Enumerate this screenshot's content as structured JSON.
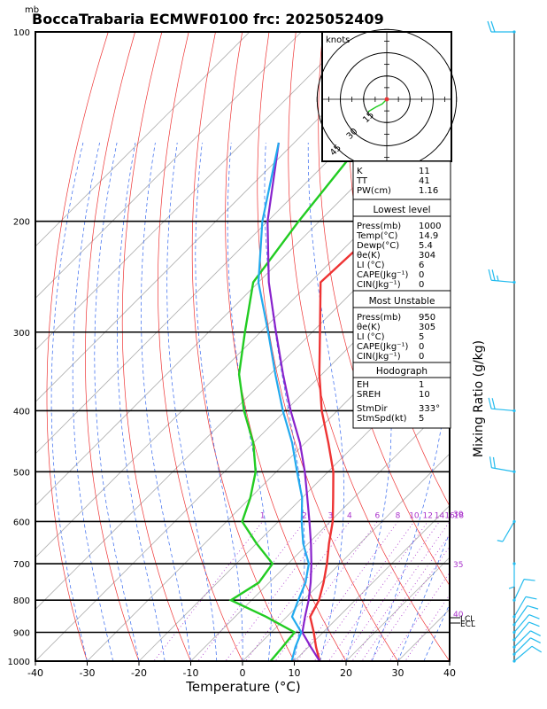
{
  "chart_data": {
    "type": "skew-t",
    "title": "BoccaTrabaria ECMWF0100 frc: 2025052409",
    "pressure_unit": "mb",
    "xlabel": "Temperature (°C)",
    "right_label": "Mixing Ratio (g/kg)",
    "x_ticks": [
      "-40",
      "-30",
      "-20",
      "-10",
      "0",
      "10",
      "20",
      "30",
      "40"
    ],
    "xlim": [
      -40,
      40
    ],
    "p_ticks": [
      "100",
      "200",
      "300",
      "400",
      "500",
      "600",
      "700",
      "800",
      "900",
      "1000"
    ],
    "plim": [
      1000,
      100
    ],
    "mixing_ratio_labels": [
      "1",
      "2",
      "3",
      "4",
      "6",
      "8",
      "10",
      "12",
      "14",
      "16",
      "18",
      "20",
      "25",
      "30"
    ],
    "theta_labels": [
      "30",
      "35",
      "40"
    ],
    "level_markers": [
      "LCL",
      "ECL"
    ],
    "series": [
      {
        "name": "temperature",
        "color": "#ee3333",
        "p": [
          1000,
          950,
          900,
          850,
          800,
          750,
          700,
          650,
          600,
          550,
          500,
          450,
          400,
          350,
          300,
          250,
          200,
          150,
          100
        ],
        "t": [
          14.9,
          11.5,
          8.2,
          4.5,
          3.0,
          0.5,
          -2.5,
          -6.0,
          -9.5,
          -14.0,
          -19.0,
          -25.5,
          -33.0,
          -40.5,
          -48.5,
          -58.0,
          -57.0,
          -55.5,
          -54.0
        ]
      },
      {
        "name": "dewpoint",
        "color": "#22cc22",
        "p": [
          1000,
          950,
          900,
          850,
          800,
          750,
          700,
          650,
          600,
          550,
          500,
          450,
          400,
          350,
          300,
          250,
          200,
          150,
          100
        ],
        "t": [
          5.4,
          5.0,
          4.5,
          -4.0,
          -14.0,
          -12.0,
          -13.0,
          -20.0,
          -27.0,
          -30.0,
          -34.0,
          -40.0,
          -48.0,
          -56.0,
          -63.0,
          -71.0,
          -74.0,
          -77.0,
          -80.0
        ]
      },
      {
        "name": "parcel",
        "color": "#8822cc",
        "p": [
          1000,
          950,
          900,
          850,
          800,
          750,
          700,
          650,
          600,
          550,
          500,
          450,
          400,
          350,
          300,
          250,
          200,
          150
        ],
        "t": [
          14.9,
          10.5,
          6.0,
          3.5,
          1.0,
          -2.0,
          -5.5,
          -9.5,
          -14.0,
          -19.0,
          -24.5,
          -31.0,
          -39.0,
          -47.5,
          -57.0,
          -68.0,
          -80.0,
          -93.0
        ]
      },
      {
        "name": "wet-bulb",
        "color": "#22aaee",
        "p": [
          1000,
          950,
          900,
          850,
          800,
          750,
          700,
          650,
          600,
          550,
          500,
          450,
          400,
          350,
          300,
          250,
          200,
          150
        ],
        "t": [
          9.5,
          7.5,
          5.8,
          1.0,
          -1.0,
          -3.0,
          -6.0,
          -11.0,
          -15.5,
          -20.0,
          -26.0,
          -32.5,
          -40.5,
          -49.0,
          -58.5,
          -70.0,
          -81.0,
          -93.0
        ]
      }
    ],
    "winds": [
      {
        "p": 1000,
        "dir": 50,
        "kt": 10
      },
      {
        "p": 975,
        "dir": 45,
        "kt": 10
      },
      {
        "p": 950,
        "dir": 45,
        "kt": 10
      },
      {
        "p": 925,
        "dir": 40,
        "kt": 10
      },
      {
        "p": 900,
        "dir": 40,
        "kt": 10
      },
      {
        "p": 875,
        "dir": 35,
        "kt": 10
      },
      {
        "p": 850,
        "dir": 30,
        "kt": 10
      },
      {
        "p": 800,
        "dir": 25,
        "kt": 10
      },
      {
        "p": 700,
        "dir": 180,
        "kt": 5
      },
      {
        "p": 600,
        "dir": 210,
        "kt": 5
      },
      {
        "p": 500,
        "dir": 280,
        "kt": 20
      },
      {
        "p": 400,
        "dir": 275,
        "kt": 20
      },
      {
        "p": 250,
        "dir": 275,
        "kt": 25
      },
      {
        "p": 100,
        "dir": 270,
        "kt": 20
      }
    ],
    "hodograph": {
      "unit_label": "knots",
      "ring_labels": [
        "15",
        "30",
        "45"
      ],
      "trace_kt": [
        [
          0,
          0
        ],
        [
          -3,
          -3
        ],
        [
          -7,
          -5
        ],
        [
          -12,
          -8
        ]
      ]
    }
  },
  "indices": {
    "rows": [
      {
        "label": "K",
        "value": "11"
      },
      {
        "label": "TT",
        "value": "41"
      },
      {
        "label": "PW(cm)",
        "value": "1.16"
      }
    ]
  },
  "lowest_level": {
    "title": "Lowest level",
    "rows": [
      {
        "label": "Press(mb)",
        "value": "1000"
      },
      {
        "label": "Temp(°C)",
        "value": "14.9"
      },
      {
        "label": "Dewp(°C)",
        "value": "5.4"
      },
      {
        "label": "θe(K)",
        "value": "304"
      },
      {
        "label": "LI (°C)",
        "value": "6"
      },
      {
        "label": "CAPE(Jkg⁻¹)",
        "value": "0"
      },
      {
        "label": "CIN(Jkg⁻¹)",
        "value": "0"
      }
    ]
  },
  "most_unstable": {
    "title": "Most Unstable",
    "rows": [
      {
        "label": "Press(mb)",
        "value": "950"
      },
      {
        "label": "θe(K)",
        "value": "305"
      },
      {
        "label": "LI (°C)",
        "value": "5"
      },
      {
        "label": "CAPE(Jkg⁻¹)",
        "value": "0"
      },
      {
        "label": "CIN(Jkg⁻¹)",
        "value": "0"
      }
    ]
  },
  "hodograph_box": {
    "title": "Hodograph",
    "rows": [
      {
        "label": "EH",
        "value": "1"
      },
      {
        "label": "SREH",
        "value": "10"
      },
      {
        "label": "StmDir",
        "value": "333°"
      },
      {
        "label": "StmSpd(kt)",
        "value": "5"
      }
    ]
  }
}
